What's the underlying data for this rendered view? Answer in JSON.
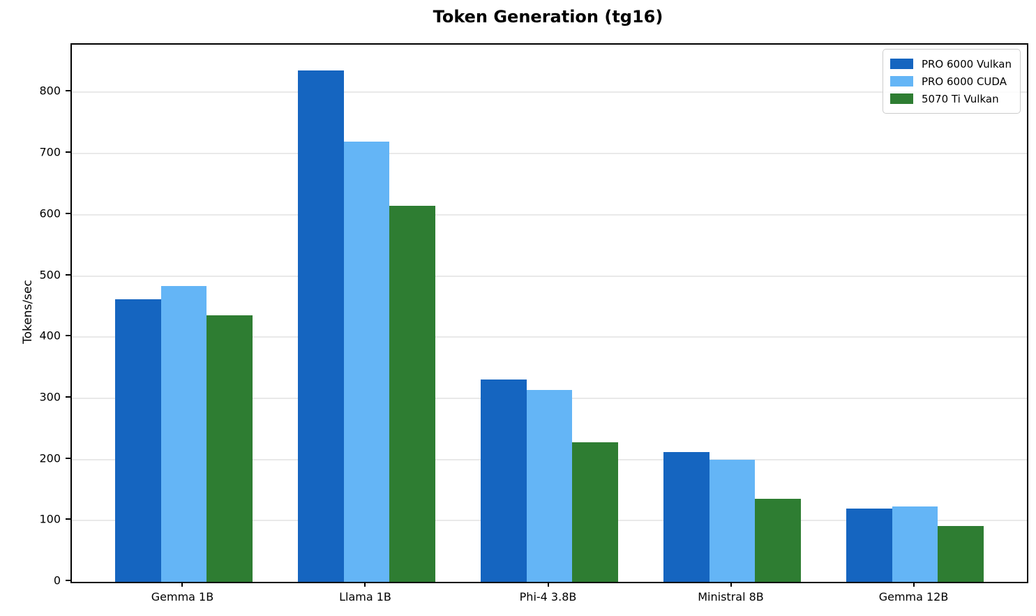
{
  "figure": {
    "title": "Token Generation (tg16)"
  },
  "chart_data": {
    "type": "bar",
    "title": "Token Generation (tg16)",
    "xlabel": "",
    "ylabel": "Tokens/sec",
    "categories": [
      "Gemma 1B",
      "Llama 1B",
      "Phi-4 3.8B",
      "Ministral 8B",
      "Gemma 12B"
    ],
    "series": [
      {
        "name": "PRO 6000 Vulkan",
        "color": "#1565C0",
        "values": [
          462,
          836,
          331,
          212,
          120
        ]
      },
      {
        "name": "PRO 6000 CUDA",
        "color": "#64B5F6",
        "values": [
          483,
          719,
          314,
          199,
          123
        ]
      },
      {
        "name": "5070 Ti Vulkan",
        "color": "#2E7D32",
        "values": [
          436,
          615,
          228,
          136,
          91
        ]
      }
    ],
    "ylim": [
      0,
      878
    ],
    "yticks": [
      0,
      100,
      200,
      300,
      400,
      500,
      600,
      700,
      800
    ],
    "grid": true,
    "grid_color": "#e9e9e9",
    "legend_position": "upper right",
    "bar_group_half_extent": 0.375,
    "x_margin": 0.6125,
    "bar_width_units": 0.25
  }
}
